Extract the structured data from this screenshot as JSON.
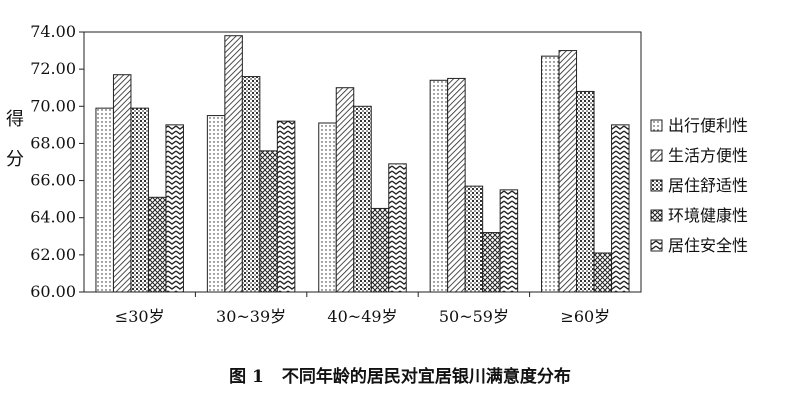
{
  "chart_data": {
    "type": "bar",
    "ylabel": "得分",
    "ylim": [
      60,
      74
    ],
    "yticks": [
      "60.00",
      "62.00",
      "64.00",
      "66.00",
      "68.00",
      "70.00",
      "72.00",
      "74.00"
    ],
    "categories": [
      "≤30岁",
      "30~39岁",
      "40~49岁",
      "50~59岁",
      "≥60岁"
    ],
    "series": [
      {
        "name": "出行便利性",
        "values": [
          69.9,
          69.5,
          69.1,
          71.4,
          72.7
        ]
      },
      {
        "name": "生活方便性",
        "values": [
          71.7,
          73.8,
          71.0,
          71.5,
          73.0
        ]
      },
      {
        "name": "居住舒适性",
        "values": [
          69.9,
          71.6,
          70.0,
          65.7,
          70.8
        ]
      },
      {
        "name": "环境健康性",
        "values": [
          65.1,
          67.6,
          64.5,
          63.2,
          62.1
        ]
      },
      {
        "name": "居住安全性",
        "values": [
          69.0,
          69.2,
          66.9,
          65.5,
          69.0
        ]
      }
    ],
    "grid": false,
    "legend_position": "right"
  },
  "caption": {
    "figure_number": "图 1",
    "title": "不同年龄的居民对宜居银川满意度分布"
  }
}
